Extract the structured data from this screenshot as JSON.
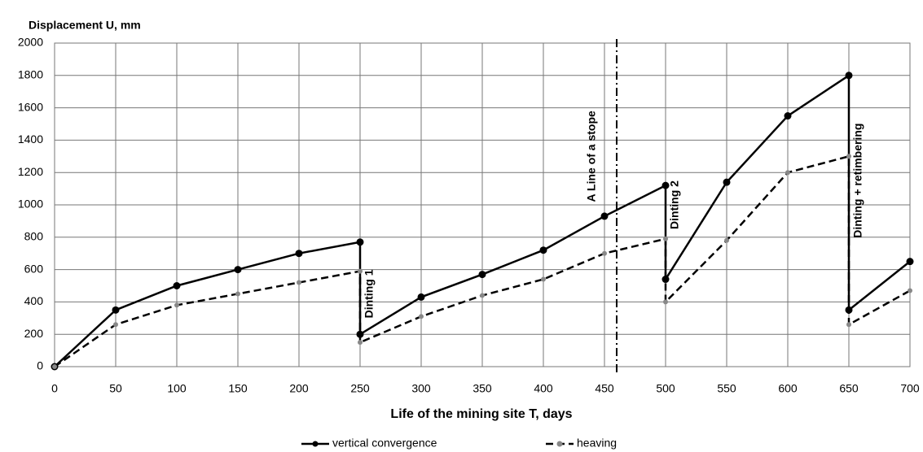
{
  "chart_data": {
    "type": "line",
    "y_label": "Displacement U, mm",
    "x_label": "Life of the mining site T, days",
    "xlim": [
      0,
      700
    ],
    "ylim": [
      0,
      2000
    ],
    "xticks": [
      0,
      50,
      100,
      150,
      200,
      250,
      300,
      350,
      400,
      450,
      500,
      550,
      600,
      650,
      700
    ],
    "yticks": [
      0,
      200,
      400,
      600,
      800,
      1000,
      1200,
      1400,
      1600,
      1800,
      2000
    ],
    "grid": true,
    "legend": "bottom",
    "series": [
      {
        "name": "vertical convergence",
        "color": "#000000",
        "dashed": false,
        "x": [
          0,
          50,
          100,
          150,
          200,
          250,
          250,
          300,
          350,
          400,
          450,
          500,
          500,
          550,
          600,
          650,
          650,
          700
        ],
        "values": [
          0,
          350,
          500,
          600,
          700,
          770,
          200,
          430,
          570,
          720,
          930,
          1120,
          540,
          1140,
          1550,
          1800,
          350,
          650
        ]
      },
      {
        "name": "heaving",
        "color": "#000000",
        "dashed": true,
        "x": [
          0,
          50,
          100,
          150,
          200,
          250,
          250,
          300,
          350,
          400,
          450,
          500,
          500,
          550,
          600,
          650,
          650,
          700
        ],
        "values": [
          0,
          260,
          380,
          450,
          520,
          590,
          150,
          310,
          440,
          540,
          700,
          790,
          400,
          780,
          1200,
          1300,
          260,
          470
        ]
      }
    ],
    "vline": {
      "x": 460,
      "label": "A Line of a stope"
    },
    "annotations": [
      {
        "text": "Dinting 1",
        "x": 258,
        "y": 450
      },
      {
        "text": "Dinting 2",
        "x": 508,
        "y": 1000
      },
      {
        "text": "Dinting + retimbering",
        "x": 658,
        "y": 1150
      }
    ]
  }
}
